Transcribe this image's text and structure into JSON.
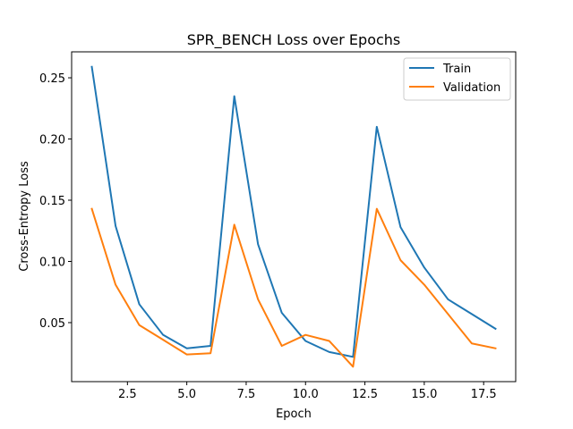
{
  "chart_data": {
    "type": "line",
    "title": "SPR_BENCH Loss over Epochs",
    "xlabel": "Epoch",
    "ylabel": "Cross-Entropy Loss",
    "x": [
      1,
      2,
      3,
      4,
      5,
      6,
      7,
      8,
      9,
      10,
      11,
      12,
      13,
      14,
      15,
      16,
      17,
      18
    ],
    "series": [
      {
        "name": "Train",
        "color": "#1f77b4",
        "values": [
          0.259,
          0.129,
          0.065,
          0.04,
          0.029,
          0.031,
          0.235,
          0.114,
          0.058,
          0.035,
          0.026,
          0.022,
          0.21,
          0.128,
          0.095,
          0.069,
          0.057,
          0.045
        ]
      },
      {
        "name": "Validation",
        "color": "#ff7f0e",
        "values": [
          0.143,
          0.081,
          0.048,
          0.036,
          0.024,
          0.025,
          0.13,
          0.069,
          0.031,
          0.04,
          0.035,
          0.014,
          0.143,
          0.101,
          0.081,
          0.057,
          0.033,
          0.029
        ]
      }
    ],
    "xlim": [
      0.15,
      18.85
    ],
    "ylim": [
      0.0018,
      0.2712
    ],
    "xticks": [
      2.5,
      5.0,
      7.5,
      10.0,
      12.5,
      15.0,
      17.5
    ],
    "xtick_labels": [
      "2.5",
      "5.0",
      "7.5",
      "10.0",
      "12.5",
      "15.0",
      "17.5"
    ],
    "yticks": [
      0.05,
      0.1,
      0.15,
      0.2,
      0.25
    ],
    "ytick_labels": [
      "0.05",
      "0.10",
      "0.15",
      "0.20",
      "0.25"
    ],
    "grid": false,
    "legend": "top-right"
  }
}
